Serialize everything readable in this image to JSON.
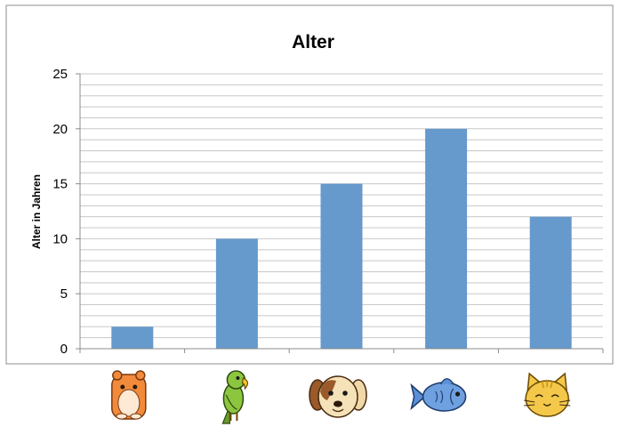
{
  "chart_data": {
    "type": "bar",
    "title": "Alter",
    "xlabel": "",
    "ylabel": "Alter in Jahren",
    "ylim": [
      0,
      25
    ],
    "yticks": [
      0,
      5,
      10,
      15,
      20,
      25
    ],
    "minor_grid_step": 1,
    "grid": true,
    "legend": "none",
    "categories": [
      "hamster-icon",
      "parrot-icon",
      "dog-icon",
      "fish-icon",
      "cat-icon"
    ],
    "values": [
      2,
      10,
      15,
      20,
      12
    ],
    "colors": {
      "bar": "#6699cc",
      "grid": "#c8c8c8",
      "axis": "#8c8c8c",
      "frame": "#8c8c8c"
    }
  }
}
